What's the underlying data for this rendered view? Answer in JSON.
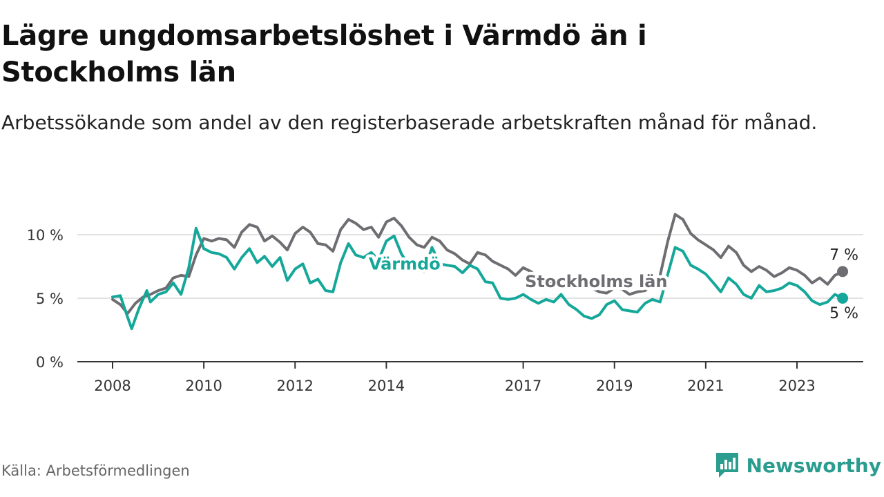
{
  "title": "Lägre ungdomsarbetslöshet i Värmdö än i Stockholms län",
  "subtitle": "Arbetssökande som andel av den registerbaserade arbetskraften månad för månad.",
  "source": "Källa: Arbetsförmedlingen",
  "brand": {
    "name": "Newsworthy",
    "icon": "newsworthy-logo-icon"
  },
  "chart_data": {
    "type": "line",
    "title": "Lägre ungdomsarbetslöshet i Värmdö än i Stockholms län",
    "xlabel": "",
    "ylabel": "",
    "xlim": [
      2008,
      2024.4
    ],
    "ylim": [
      0,
      12
    ],
    "grid": true,
    "y_ticks": [
      {
        "value": 0,
        "label": "0 %"
      },
      {
        "value": 5,
        "label": "5 %"
      },
      {
        "value": 10,
        "label": "10 %"
      }
    ],
    "x_ticks": [
      {
        "value": 2008,
        "label": "2008"
      },
      {
        "value": 2010,
        "label": "2010"
      },
      {
        "value": 2012,
        "label": "2012"
      },
      {
        "value": 2014,
        "label": "2014"
      },
      {
        "value": 2017,
        "label": "2017"
      },
      {
        "value": 2019,
        "label": "2019"
      },
      {
        "value": 2021,
        "label": "2021"
      },
      {
        "value": 2023,
        "label": "2023"
      }
    ],
    "series": [
      {
        "name": "Stockholms län",
        "color": "#6e6d72",
        "end_label": "7 %",
        "points": [
          [
            2008.0,
            4.9
          ],
          [
            2008.17,
            4.5
          ],
          [
            2008.33,
            3.8
          ],
          [
            2008.5,
            4.6
          ],
          [
            2008.67,
            5.1
          ],
          [
            2008.83,
            5.3
          ],
          [
            2009.0,
            5.6
          ],
          [
            2009.17,
            5.8
          ],
          [
            2009.33,
            6.6
          ],
          [
            2009.5,
            6.8
          ],
          [
            2009.67,
            6.7
          ],
          [
            2009.83,
            8.4
          ],
          [
            2010.0,
            9.7
          ],
          [
            2010.17,
            9.5
          ],
          [
            2010.33,
            9.7
          ],
          [
            2010.5,
            9.6
          ],
          [
            2010.67,
            9.0
          ],
          [
            2010.83,
            10.2
          ],
          [
            2011.0,
            10.8
          ],
          [
            2011.17,
            10.6
          ],
          [
            2011.33,
            9.5
          ],
          [
            2011.5,
            9.9
          ],
          [
            2011.67,
            9.4
          ],
          [
            2011.83,
            8.8
          ],
          [
            2012.0,
            10.1
          ],
          [
            2012.17,
            10.6
          ],
          [
            2012.33,
            10.2
          ],
          [
            2012.5,
            9.3
          ],
          [
            2012.67,
            9.2
          ],
          [
            2012.83,
            8.7
          ],
          [
            2013.0,
            10.4
          ],
          [
            2013.17,
            11.2
          ],
          [
            2013.33,
            10.9
          ],
          [
            2013.5,
            10.4
          ],
          [
            2013.67,
            10.6
          ],
          [
            2013.83,
            9.8
          ],
          [
            2014.0,
            11.0
          ],
          [
            2014.17,
            11.3
          ],
          [
            2014.33,
            10.7
          ],
          [
            2014.5,
            9.8
          ],
          [
            2014.67,
            9.2
          ],
          [
            2014.83,
            9.0
          ],
          [
            2015.0,
            9.8
          ],
          [
            2015.17,
            9.5
          ],
          [
            2015.33,
            8.8
          ],
          [
            2015.5,
            8.5
          ],
          [
            2015.67,
            8.0
          ],
          [
            2015.83,
            7.7
          ],
          [
            2016.0,
            8.6
          ],
          [
            2016.17,
            8.4
          ],
          [
            2016.33,
            7.9
          ],
          [
            2016.5,
            7.6
          ],
          [
            2016.67,
            7.3
          ],
          [
            2016.83,
            6.8
          ],
          [
            2017.0,
            7.4
          ],
          [
            2017.17,
            7.1
          ],
          [
            2017.33,
            6.6
          ],
          [
            2017.5,
            6.5
          ],
          [
            2017.67,
            6.2
          ],
          [
            2017.83,
            6.0
          ],
          [
            2018.0,
            6.4
          ],
          [
            2018.17,
            6.6
          ],
          [
            2018.33,
            6.1
          ],
          [
            2018.5,
            5.8
          ],
          [
            2018.67,
            5.5
          ],
          [
            2018.83,
            5.4
          ],
          [
            2019.0,
            5.8
          ],
          [
            2019.17,
            5.7
          ],
          [
            2019.33,
            5.3
          ],
          [
            2019.5,
            5.5
          ],
          [
            2019.67,
            5.6
          ],
          [
            2019.83,
            6.0
          ],
          [
            2020.0,
            6.8
          ],
          [
            2020.17,
            9.5
          ],
          [
            2020.33,
            11.6
          ],
          [
            2020.5,
            11.2
          ],
          [
            2020.67,
            10.1
          ],
          [
            2020.83,
            9.6
          ],
          [
            2021.0,
            9.2
          ],
          [
            2021.17,
            8.8
          ],
          [
            2021.33,
            8.2
          ],
          [
            2021.5,
            9.1
          ],
          [
            2021.67,
            8.6
          ],
          [
            2021.83,
            7.6
          ],
          [
            2022.0,
            7.1
          ],
          [
            2022.17,
            7.5
          ],
          [
            2022.33,
            7.2
          ],
          [
            2022.5,
            6.7
          ],
          [
            2022.67,
            7.0
          ],
          [
            2022.83,
            7.4
          ],
          [
            2023.0,
            7.2
          ],
          [
            2023.17,
            6.8
          ],
          [
            2023.33,
            6.2
          ],
          [
            2023.5,
            6.6
          ],
          [
            2023.67,
            6.1
          ],
          [
            2023.83,
            6.8
          ],
          [
            2024.0,
            7.1
          ]
        ]
      },
      {
        "name": "Värmdö",
        "color": "#15a89a",
        "end_label": "5 %",
        "points": [
          [
            2008.0,
            5.1
          ],
          [
            2008.17,
            5.2
          ],
          [
            2008.33,
            3.5
          ],
          [
            2008.42,
            2.6
          ],
          [
            2008.58,
            4.2
          ],
          [
            2008.75,
            5.6
          ],
          [
            2008.83,
            4.7
          ],
          [
            2009.0,
            5.3
          ],
          [
            2009.17,
            5.5
          ],
          [
            2009.33,
            6.2
          ],
          [
            2009.5,
            5.3
          ],
          [
            2009.67,
            7.4
          ],
          [
            2009.83,
            10.5
          ],
          [
            2010.0,
            8.9
          ],
          [
            2010.17,
            8.6
          ],
          [
            2010.33,
            8.5
          ],
          [
            2010.5,
            8.2
          ],
          [
            2010.67,
            7.3
          ],
          [
            2010.83,
            8.2
          ],
          [
            2011.0,
            8.9
          ],
          [
            2011.17,
            7.8
          ],
          [
            2011.33,
            8.3
          ],
          [
            2011.5,
            7.5
          ],
          [
            2011.67,
            8.2
          ],
          [
            2011.83,
            6.4
          ],
          [
            2012.0,
            7.3
          ],
          [
            2012.17,
            7.7
          ],
          [
            2012.33,
            6.2
          ],
          [
            2012.5,
            6.5
          ],
          [
            2012.67,
            5.6
          ],
          [
            2012.83,
            5.5
          ],
          [
            2013.0,
            7.8
          ],
          [
            2013.17,
            9.3
          ],
          [
            2013.33,
            8.4
          ],
          [
            2013.5,
            8.2
          ],
          [
            2013.67,
            8.6
          ],
          [
            2013.83,
            8.0
          ],
          [
            2014.0,
            9.5
          ],
          [
            2014.17,
            9.9
          ],
          [
            2014.33,
            8.5
          ],
          [
            2014.5,
            7.5
          ],
          [
            2014.67,
            7.2
          ],
          [
            2014.83,
            7.1
          ],
          [
            2015.0,
            9.0
          ],
          [
            2015.17,
            7.7
          ],
          [
            2015.33,
            7.6
          ],
          [
            2015.5,
            7.5
          ],
          [
            2015.67,
            7.0
          ],
          [
            2015.83,
            7.6
          ],
          [
            2016.0,
            7.3
          ],
          [
            2016.17,
            6.3
          ],
          [
            2016.33,
            6.2
          ],
          [
            2016.5,
            5.0
          ],
          [
            2016.67,
            4.9
          ],
          [
            2016.83,
            5.0
          ],
          [
            2017.0,
            5.3
          ],
          [
            2017.17,
            4.9
          ],
          [
            2017.33,
            4.6
          ],
          [
            2017.5,
            4.9
          ],
          [
            2017.67,
            4.7
          ],
          [
            2017.83,
            5.3
          ],
          [
            2018.0,
            4.5
          ],
          [
            2018.17,
            4.1
          ],
          [
            2018.33,
            3.6
          ],
          [
            2018.5,
            3.4
          ],
          [
            2018.67,
            3.7
          ],
          [
            2018.83,
            4.5
          ],
          [
            2019.0,
            4.8
          ],
          [
            2019.17,
            4.1
          ],
          [
            2019.33,
            4.0
          ],
          [
            2019.5,
            3.9
          ],
          [
            2019.67,
            4.6
          ],
          [
            2019.83,
            4.9
          ],
          [
            2020.0,
            4.7
          ],
          [
            2020.17,
            6.9
          ],
          [
            2020.33,
            9.0
          ],
          [
            2020.5,
            8.7
          ],
          [
            2020.67,
            7.6
          ],
          [
            2020.83,
            7.3
          ],
          [
            2021.0,
            6.9
          ],
          [
            2021.17,
            6.2
          ],
          [
            2021.33,
            5.5
          ],
          [
            2021.5,
            6.6
          ],
          [
            2021.67,
            6.1
          ],
          [
            2021.83,
            5.3
          ],
          [
            2022.0,
            5.0
          ],
          [
            2022.17,
            6.0
          ],
          [
            2022.33,
            5.5
          ],
          [
            2022.5,
            5.6
          ],
          [
            2022.67,
            5.8
          ],
          [
            2022.83,
            6.2
          ],
          [
            2023.0,
            6.0
          ],
          [
            2023.17,
            5.5
          ],
          [
            2023.33,
            4.8
          ],
          [
            2023.5,
            4.5
          ],
          [
            2023.67,
            4.7
          ],
          [
            2023.83,
            5.3
          ],
          [
            2024.0,
            5.0
          ]
        ]
      }
    ],
    "annotations": [
      {
        "text": "Värmdö",
        "series": "Värmdö",
        "x": 2014.4,
        "y": 7.7
      },
      {
        "text": "Stockholms län",
        "series": "Stockholms län",
        "x": 2018.6,
        "y": 6.3
      }
    ]
  }
}
